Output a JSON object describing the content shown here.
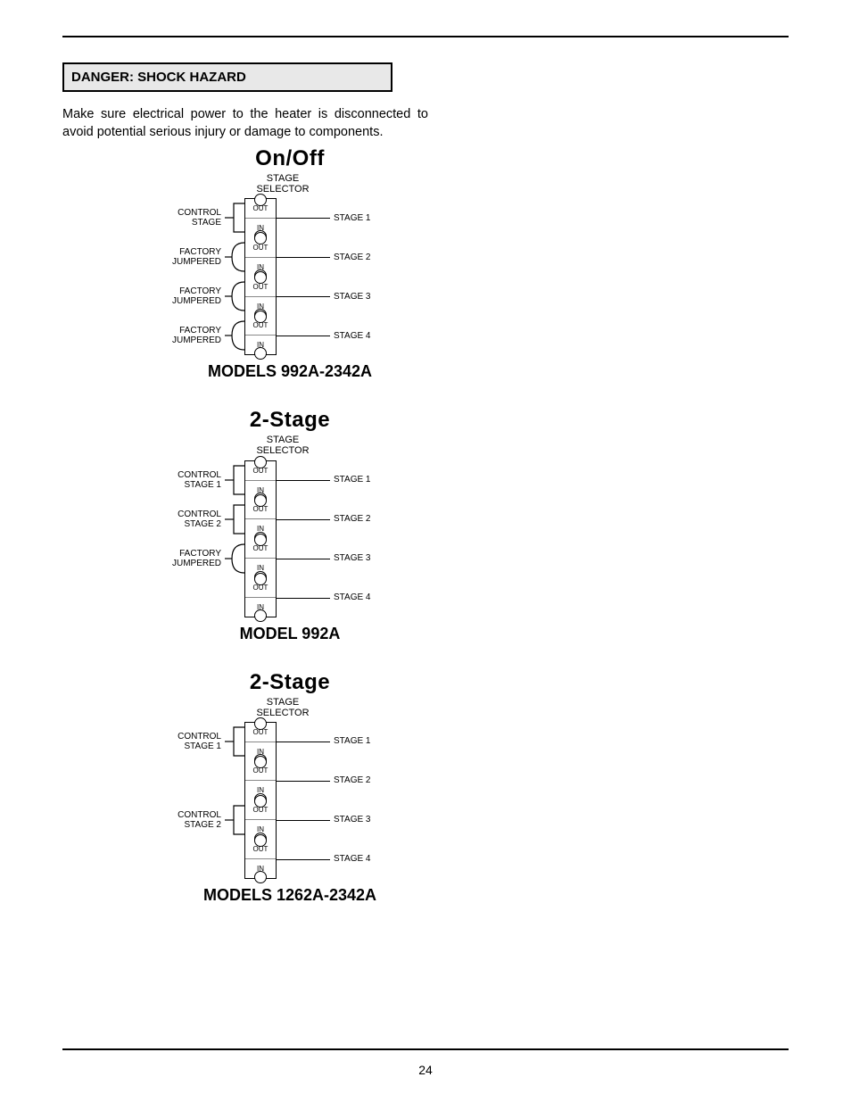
{
  "page_number": "24",
  "danger_heading": "DANGER: SHOCK HAZARD",
  "warning_text": "Make sure electrical power to the heater is disconnected to avoid potential serious injury or damage to components.",
  "colors": {
    "bg": "#ffffff",
    "text": "#000000",
    "danger_bg": "#e8e8e8",
    "rule": "#000000"
  },
  "fonts": {
    "body_pt": 14.5,
    "title_pt": 24,
    "models_pt": 18,
    "smalltext_pt": 10,
    "tiny_pt": 8
  },
  "selector_header": "STAGE\nSELECTOR",
  "terminal_labels": {
    "out": "OUT",
    "in": "IN"
  },
  "diagrams": [
    {
      "title": "On/Off",
      "models": "MODELS 992A-2342A",
      "stages": [
        {
          "left": "CONTROL\nSTAGE",
          "right": "STAGE 1",
          "bracket": "square"
        },
        {
          "left": "FACTORY\nJUMPERED",
          "right": "STAGE 2",
          "bracket": "paren"
        },
        {
          "left": "FACTORY\nJUMPERED",
          "right": "STAGE 3",
          "bracket": "paren"
        },
        {
          "left": "FACTORY\nJUMPERED",
          "right": "STAGE 4",
          "bracket": "paren"
        }
      ]
    },
    {
      "title": "2-Stage",
      "models": "MODEL 992A",
      "stages": [
        {
          "left": "CONTROL\nSTAGE 1",
          "right": "STAGE 1",
          "bracket": "square"
        },
        {
          "left": "CONTROL\nSTAGE 2",
          "right": "STAGE 2",
          "bracket": "square"
        },
        {
          "left": "FACTORY\nJUMPERED",
          "right": "STAGE 3",
          "bracket": "paren"
        },
        {
          "left": "",
          "right": "STAGE 4",
          "bracket": "none"
        }
      ]
    },
    {
      "title": "2-Stage",
      "models": "MODELS 1262A-2342A",
      "stages": [
        {
          "left": "CONTROL\nSTAGE 1",
          "right": "STAGE 1",
          "bracket": "square"
        },
        {
          "left": "",
          "right": "STAGE 2",
          "bracket": "none"
        },
        {
          "left": "CONTROL\nSTAGE 2",
          "right": "STAGE 3",
          "bracket": "square"
        },
        {
          "left": "",
          "right": "STAGE 4",
          "bracket": "none"
        }
      ]
    }
  ]
}
